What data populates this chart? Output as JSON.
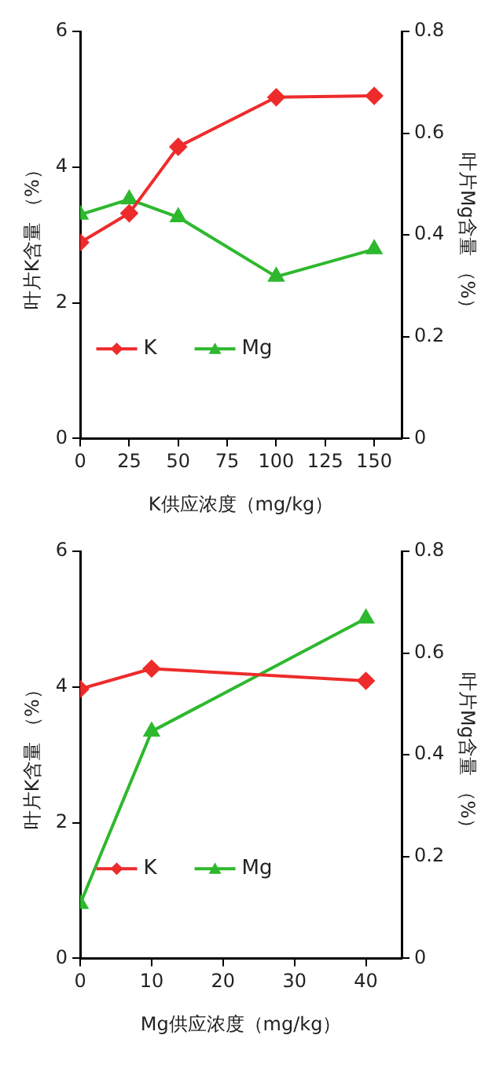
{
  "chart_data": [
    {
      "type": "line",
      "xlabel": "K供应浓度（mg/kg）",
      "ylabel": "叶片K含量 （%）",
      "y2label": "叶片Mg含量 （%）",
      "x": [
        0,
        25,
        50,
        100,
        150
      ],
      "xlim": [
        0,
        164
      ],
      "xticks": [
        0,
        25,
        50,
        75,
        100,
        125,
        150
      ],
      "ylim": [
        0,
        6
      ],
      "yticks": [
        0,
        2,
        4,
        6
      ],
      "y2lim": [
        0,
        0.8
      ],
      "y2ticks": [
        0,
        0.2,
        0.4,
        0.6,
        0.8
      ],
      "grid": false,
      "legend": "bottom left",
      "series": [
        {
          "name": "K",
          "color": "#ee2b2b",
          "marker": "diamond",
          "values": [
            2.89,
            3.32,
            4.3,
            5.03,
            5.05
          ]
        },
        {
          "name": "Mg",
          "color": "#2eb82e",
          "marker": "triangle",
          "axis": "y2",
          "values": [
            0.44,
            0.47,
            0.435,
            0.318,
            0.372
          ]
        }
      ]
    },
    {
      "type": "line",
      "xlabel": "Mg供应浓度（mg/kg）",
      "ylabel": "叶片K含量 （%）",
      "y2label": "叶片Mg含量 （%）",
      "x": [
        0,
        10,
        40
      ],
      "xlim": [
        0,
        45
      ],
      "xticks": [
        0,
        10,
        20,
        30,
        40
      ],
      "ylim": [
        0,
        6
      ],
      "yticks": [
        0,
        2,
        4,
        6
      ],
      "y2lim": [
        0,
        0.8
      ],
      "y2ticks": [
        0,
        0.2,
        0.4,
        0.6,
        0.8
      ],
      "grid": false,
      "legend": "bottom left",
      "series": [
        {
          "name": "K",
          "color": "#ee2b2b",
          "marker": "diamond",
          "values": [
            3.97,
            4.27,
            4.09
          ]
        },
        {
          "name": "Mg",
          "color": "#2eb82e",
          "marker": "triangle",
          "axis": "y2",
          "values": [
            0.107,
            0.446,
            0.668
          ]
        }
      ]
    }
  ]
}
